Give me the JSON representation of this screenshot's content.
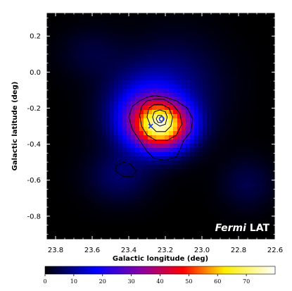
{
  "chart_data": {
    "type": "heatmap",
    "colormap": "black-blue-red-yellow-white",
    "xlabel": "Galactic longitude (deg)",
    "ylabel": "Galactic latitude (deg)",
    "xlim": [
      23.85,
      22.6
    ],
    "ylim": [
      -0.93,
      0.33
    ],
    "x_reversed": true,
    "x_ticks": [
      23.8,
      23.6,
      23.4,
      23.2,
      23.0,
      22.8,
      22.6
    ],
    "x_tick_labels": [
      "23.8",
      "23.6",
      "23.4",
      "23.2",
      "23.0",
      "22.8",
      "22.6"
    ],
    "y_ticks": [
      0.2,
      0.0,
      -0.2,
      -0.4,
      -0.6,
      -0.8
    ],
    "y_tick_labels": [
      "0.2",
      "0.0",
      "-0.2",
      "-0.4",
      "-0.6",
      "-0.8"
    ],
    "colorbar": {
      "range": [
        0,
        80
      ],
      "ticks": [
        0,
        10,
        20,
        30,
        40,
        50,
        60,
        70
      ],
      "tick_labels": [
        "0",
        "10",
        "20",
        "30",
        "40",
        "50",
        "60",
        "70"
      ]
    },
    "emission_components": [
      {
        "l": 23.22,
        "b": -0.3,
        "peak": 62,
        "sigma_l": 0.11,
        "sigma_b": 0.09
      },
      {
        "l": 23.32,
        "b": -0.22,
        "peak": 18,
        "sigma_l": 0.14,
        "sigma_b": 0.14
      },
      {
        "l": 23.15,
        "b": -0.08,
        "peak": 8,
        "sigma_l": 0.18,
        "sigma_b": 0.18
      },
      {
        "l": 23.45,
        "b": -0.58,
        "peak": 7,
        "sigma_l": 0.12,
        "sigma_b": 0.1
      },
      {
        "l": 22.75,
        "b": -0.62,
        "peak": 5,
        "sigma_l": 0.1,
        "sigma_b": 0.1
      },
      {
        "l": 23.6,
        "b": 0.1,
        "peak": 4,
        "sigma_l": 0.12,
        "sigma_b": 0.1
      }
    ],
    "contours": [
      {
        "l": [
          23.38,
          23.34,
          23.3,
          23.26,
          23.2,
          23.14,
          23.08,
          23.05,
          23.06,
          23.1,
          23.12,
          23.14,
          23.2,
          23.26,
          23.3,
          23.34,
          23.38,
          23.4,
          23.38
        ],
        "b": [
          -0.19,
          -0.16,
          -0.14,
          -0.13,
          -0.14,
          -0.16,
          -0.2,
          -0.26,
          -0.33,
          -0.38,
          -0.43,
          -0.47,
          -0.49,
          -0.48,
          -0.44,
          -0.38,
          -0.32,
          -0.25,
          -0.19
        ]
      },
      {
        "l": [
          23.33,
          23.3,
          23.26,
          23.21,
          23.16,
          23.12,
          23.11,
          23.14,
          23.19,
          23.25,
          23.3,
          23.33,
          23.34,
          23.33
        ],
        "b": [
          -0.19,
          -0.16,
          -0.15,
          -0.15,
          -0.18,
          -0.23,
          -0.29,
          -0.35,
          -0.38,
          -0.38,
          -0.35,
          -0.3,
          -0.24,
          -0.19
        ]
      },
      {
        "l": [
          23.29,
          23.26,
          23.22,
          23.18,
          23.16,
          23.17,
          23.2,
          23.25,
          23.28,
          23.3,
          23.29
        ],
        "b": [
          -0.2,
          -0.18,
          -0.18,
          -0.2,
          -0.25,
          -0.3,
          -0.33,
          -0.33,
          -0.3,
          -0.25,
          -0.2
        ]
      },
      {
        "l": [
          23.26,
          23.23,
          23.2,
          23.19,
          23.2,
          23.23,
          23.26,
          23.27,
          23.26
        ],
        "b": [
          -0.22,
          -0.21,
          -0.22,
          -0.25,
          -0.29,
          -0.3,
          -0.28,
          -0.25,
          -0.22
        ]
      },
      {
        "l": [
          23.24,
          23.22,
          23.21,
          23.22,
          23.24,
          23.25,
          23.24
        ],
        "b": [
          -0.24,
          -0.24,
          -0.26,
          -0.28,
          -0.28,
          -0.26,
          -0.24
        ]
      },
      {
        "l": [
          23.47,
          23.43,
          23.39,
          23.36,
          23.38,
          23.43,
          23.47,
          23.47
        ],
        "b": [
          -0.52,
          -0.5,
          -0.51,
          -0.55,
          -0.58,
          -0.58,
          -0.55,
          -0.52
        ]
      }
    ],
    "markers": [
      {
        "label": "X",
        "l": 23.28,
        "b": -0.3
      },
      {
        "label": "o",
        "l": 23.22,
        "b": -0.26
      }
    ],
    "annotation_italic": "Fermi",
    "annotation_normal": "LAT"
  }
}
